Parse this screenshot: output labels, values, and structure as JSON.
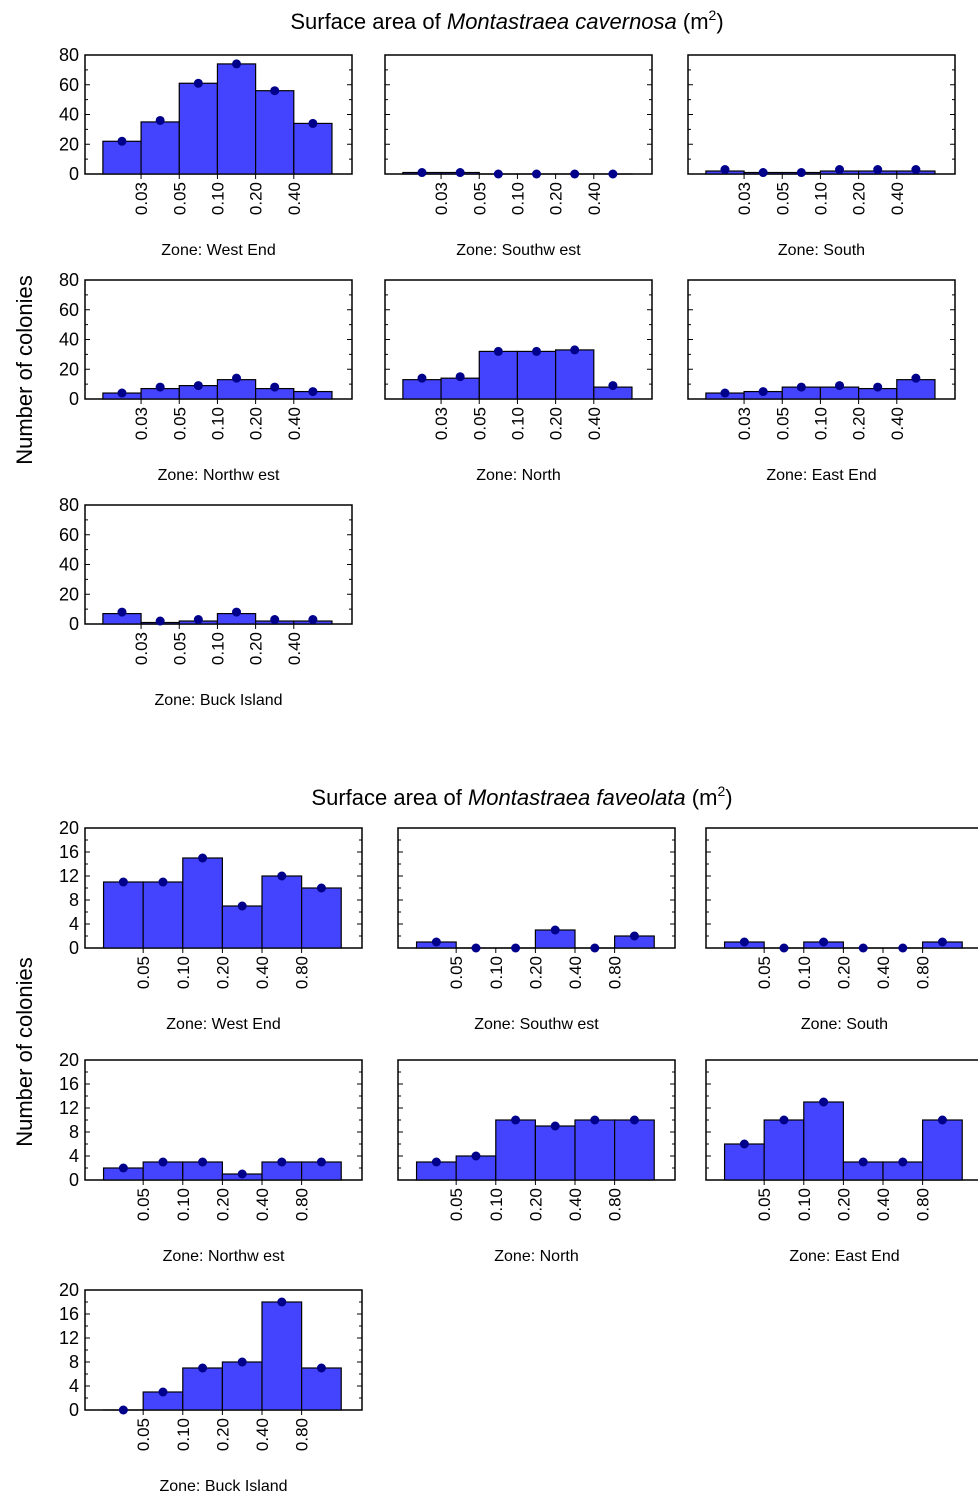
{
  "colors": {
    "bar_fill": "#4444ff",
    "bar_stroke": "#000000",
    "point_fill": "#00008b"
  },
  "chart_data": [
    {
      "type": "bar",
      "title_pre": "Surface area of ",
      "title_species": "Montastraea cavernosa",
      "title_unit": " (m",
      "title_sup": "2",
      "title_close": ")",
      "ylabel": "Number of colonies",
      "ylim": [
        0,
        80
      ],
      "yticks": [
        0,
        20,
        40,
        60,
        80
      ],
      "tick_labels": [
        "0.03",
        "0.05",
        "0.10",
        "0.20",
        "0.40"
      ],
      "panels": [
        {
          "label": "Zone: West End",
          "values": [
            22,
            35,
            61,
            74,
            56,
            34
          ],
          "points": [
            22,
            36,
            61,
            74,
            56,
            34
          ]
        },
        {
          "label": "Zone: Southw est",
          "values": [
            1,
            1,
            0,
            0,
            0,
            0
          ],
          "points": [
            1,
            1,
            0,
            0,
            0,
            0
          ]
        },
        {
          "label": "Zone: South",
          "values": [
            2,
            1,
            1,
            2,
            2,
            2
          ],
          "points": [
            3,
            1,
            1,
            3,
            3,
            3
          ]
        },
        {
          "label": "Zone: Northw est",
          "values": [
            4,
            7,
            9,
            13,
            7,
            5
          ],
          "points": [
            4,
            8,
            9,
            14,
            8,
            5
          ]
        },
        {
          "label": "Zone: North",
          "values": [
            13,
            14,
            32,
            32,
            33,
            8
          ],
          "points": [
            14,
            15,
            32,
            32,
            33,
            9
          ]
        },
        {
          "label": "Zone: East End",
          "values": [
            4,
            5,
            8,
            8,
            7,
            13
          ],
          "points": [
            4,
            5,
            8,
            9,
            8,
            14
          ]
        },
        {
          "label": "Zone: Buck Island",
          "values": [
            7,
            1,
            2,
            7,
            2,
            2
          ],
          "points": [
            8,
            2,
            3,
            8,
            3,
            3
          ]
        }
      ]
    },
    {
      "type": "bar",
      "title_pre": "Surface area of ",
      "title_species": "Montastraea faveolata",
      "title_unit": " (m",
      "title_sup": "2",
      "title_close": ")",
      "ylabel": "Number of colonies",
      "ylim": [
        0,
        20
      ],
      "yticks": [
        0,
        4,
        8,
        12,
        16,
        20
      ],
      "tick_labels": [
        "0.05",
        "0.10",
        "0.20",
        "0.40",
        "0.80"
      ],
      "panels": [
        {
          "label": "Zone: West End",
          "values": [
            11,
            11,
            15,
            7,
            12,
            10
          ],
          "points": [
            11,
            11,
            15,
            7,
            12,
            10
          ]
        },
        {
          "label": "Zone: Southw est",
          "values": [
            1,
            0,
            0,
            3,
            0,
            2
          ],
          "points": [
            1,
            0,
            0,
            3,
            0,
            2
          ]
        },
        {
          "label": "Zone: South",
          "values": [
            1,
            0,
            1,
            0,
            0,
            1
          ],
          "points": [
            1,
            0,
            1,
            0,
            0,
            1
          ]
        },
        {
          "label": "Zone: Northw est",
          "values": [
            2,
            3,
            3,
            1,
            3,
            3
          ],
          "points": [
            2,
            3,
            3,
            1,
            3,
            3
          ]
        },
        {
          "label": "Zone: North",
          "values": [
            3,
            4,
            10,
            9,
            10,
            10
          ],
          "points": [
            3,
            4,
            10,
            9,
            10,
            10
          ]
        },
        {
          "label": "Zone: East End",
          "values": [
            6,
            10,
            13,
            3,
            3,
            10
          ],
          "points": [
            6,
            10,
            13,
            3,
            3,
            10
          ]
        },
        {
          "label": "Zone: Buck Island",
          "values": [
            0,
            3,
            7,
            8,
            18,
            7
          ],
          "points": [
            0,
            3,
            7,
            8,
            18,
            7
          ]
        }
      ]
    }
  ]
}
